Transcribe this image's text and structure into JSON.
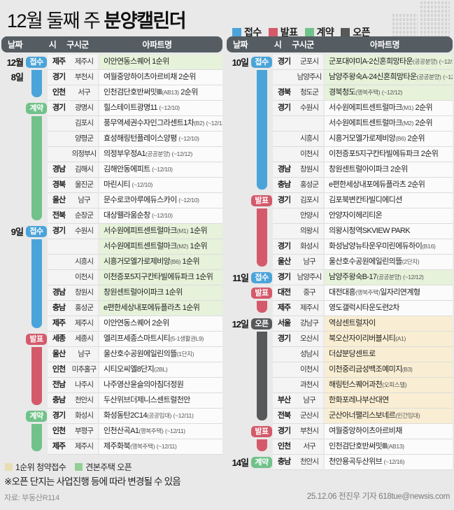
{
  "title": {
    "prefix": "12월 둘째 주 ",
    "emphasis": "분양캘린더"
  },
  "legend": {
    "items": [
      {
        "label": "접수",
        "color": "#4ba4d9"
      },
      {
        "label": "발표",
        "color": "#d45a6b"
      },
      {
        "label": "계약",
        "color": "#71c28a"
      },
      {
        "label": "오픈",
        "color": "#57585a"
      }
    ]
  },
  "columns": {
    "date": "날짜",
    "si": "시",
    "gugun": "구시군",
    "apt": "아파트명"
  },
  "colors": {
    "접수": "#4ba4d9",
    "발표": "#d45a6b",
    "계약": "#71c28a",
    "오픈": "#57585a",
    "hl_green": "#e6f2da",
    "hl_beige": "#f9eed3",
    "header": "#555d63"
  },
  "tables": [
    {
      "id": "left",
      "days": [
        {
          "date": [
            "12월",
            "8일"
          ],
          "sections": [
            {
              "type": "접수",
              "rows": [
                {
                  "si": "제주",
                  "gu": "제주시",
                  "apt": "이안연동스퀘어 1순위",
                  "hl": "green"
                },
                {
                  "si": "경기",
                  "gu": "부천시",
                  "apt": "여월중앙하이츠아르비채 2순위",
                  "hl": ""
                },
                {
                  "si": "인천",
                  "gu": "서구",
                  "apt": "인천검단호반써밋Ⅲ(AB13) 2순위",
                  "hl": ""
                }
              ]
            },
            {
              "type": "계약",
              "rows": [
                {
                  "si": "경기",
                  "gu": "광명시",
                  "apt": "힐스테이트광명11 (~12/10)",
                  "hl": ""
                },
                {
                  "si": "",
                  "gu": "김포시",
                  "apt": "풍무역세권수자인그라센트1차(B2) (~12/12)",
                  "hl": ""
                },
                {
                  "si": "",
                  "gu": "양평군",
                  "apt": "효성해링턴플레이스양평 (~12/10)",
                  "hl": ""
                },
                {
                  "si": "",
                  "gu": "의정부시",
                  "apt": "의정부우정A1(공공분양) (~12/12)",
                  "hl": ""
                },
                {
                  "si": "경남",
                  "gu": "김해시",
                  "apt": "김해안동에피트 (~12/10)",
                  "hl": ""
                },
                {
                  "si": "경북",
                  "gu": "울진군",
                  "apt": "마린시티 (~12/10)",
                  "hl": ""
                },
                {
                  "si": "울산",
                  "gu": "남구",
                  "apt": "문수로코아루에듀스카이 (~12/10)",
                  "hl": ""
                },
                {
                  "si": "전북",
                  "gu": "순창군",
                  "apt": "대상웰라움순창 (~12/10)",
                  "hl": ""
                }
              ]
            }
          ]
        },
        {
          "date": [
            "9일"
          ],
          "sections": [
            {
              "type": "접수",
              "rows": [
                {
                  "si": "경기",
                  "gu": "수원시",
                  "apt": "서수원에피트센트럴마크(M1) 1순위",
                  "hl": "green"
                },
                {
                  "si": "",
                  "gu": "",
                  "apt": "서수원에피트센트럴마크(M2) 1순위",
                  "hl": "green"
                },
                {
                  "si": "",
                  "gu": "시흥시",
                  "apt": "시흥거모엘가로제비앙(B6) 1순위",
                  "hl": "green"
                },
                {
                  "si": "",
                  "gu": "이천시",
                  "apt": "이천증포5지구칸타빌에듀파크 1순위",
                  "hl": "green"
                },
                {
                  "si": "경남",
                  "gu": "창원시",
                  "apt": "창원센트럴아이파크 1순위",
                  "hl": "green"
                },
                {
                  "si": "충남",
                  "gu": "홍성군",
                  "apt": "e편한세상내포에듀플라츠 1순위",
                  "hl": "green"
                },
                {
                  "si": "제주",
                  "gu": "제주시",
                  "apt": "이안연동스퀘어 2순위",
                  "hl": ""
                }
              ]
            },
            {
              "type": "발표",
              "rows": [
                {
                  "si": "세종",
                  "gu": "세종시",
                  "apt": "엘리프세종스마트시티(5-1생활권L9)",
                  "hl": ""
                },
                {
                  "si": "울산",
                  "gu": "남구",
                  "apt": "울산호수공원에일린의뜰(1단지)",
                  "hl": ""
                },
                {
                  "si": "인천",
                  "gu": "미추홀구",
                  "apt": "시티오씨엘8단지(2BL)",
                  "hl": ""
                },
                {
                  "si": "전남",
                  "gu": "나주시",
                  "apt": "나주영산윤슬의아침더정원",
                  "hl": ""
                },
                {
                  "si": "충남",
                  "gu": "천안시",
                  "apt": "두산위브더제니스센트럴천안",
                  "hl": ""
                }
              ]
            },
            {
              "type": "계약",
              "rows": [
                {
                  "si": "경기",
                  "gu": "화성시",
                  "apt": "화성동탄2C14(공공임대) (~12/11)",
                  "hl": ""
                },
                {
                  "si": "인천",
                  "gu": "부평구",
                  "apt": "인천산곡A1(행복주택) (~12/11)",
                  "hl": ""
                },
                {
                  "si": "제주",
                  "gu": "제주시",
                  "apt": "제주화북(행복주택) (~12/11)",
                  "hl": ""
                }
              ]
            }
          ]
        }
      ]
    },
    {
      "id": "right",
      "days": [
        {
          "date": [
            "10일"
          ],
          "sections": [
            {
              "type": "접수",
              "rows": [
                {
                  "si": "경기",
                  "gu": "군포시",
                  "apt": "군포대야미A-2신혼희망타운(공공분양) (~12/11)",
                  "hl": "green"
                },
                {
                  "si": "",
                  "gu": "남양주시",
                  "apt": "남양주왕숙A-24신혼희망타운(공공분양) (~12/12)",
                  "hl": "green"
                },
                {
                  "si": "경북",
                  "gu": "청도군",
                  "apt": "경북청도(행복주택) (~12/12)",
                  "hl": "green"
                },
                {
                  "si": "경기",
                  "gu": "수원시",
                  "apt": "서수원에피트센트럴마크(M1) 2순위",
                  "hl": ""
                },
                {
                  "si": "",
                  "gu": "",
                  "apt": "서수원에피트센트럴마크(M2) 2순위",
                  "hl": ""
                },
                {
                  "si": "",
                  "gu": "시흥시",
                  "apt": "시흥거모엘가로제비앙(B6) 2순위",
                  "hl": ""
                },
                {
                  "si": "",
                  "gu": "이천시",
                  "apt": "이천증포5지구칸타빌에듀파크 2순위",
                  "hl": ""
                },
                {
                  "si": "경남",
                  "gu": "창원시",
                  "apt": "창원센트럴아이파크 2순위",
                  "hl": ""
                },
                {
                  "si": "충남",
                  "gu": "홍성군",
                  "apt": "e편한세상내포에듀플라츠 2순위",
                  "hl": ""
                }
              ]
            },
            {
              "type": "발표",
              "rows": [
                {
                  "si": "경기",
                  "gu": "김포시",
                  "apt": "김포북변칸타빌디에디션",
                  "hl": ""
                },
                {
                  "si": "",
                  "gu": "안양시",
                  "apt": "안양자이헤리티온",
                  "hl": ""
                },
                {
                  "si": "",
                  "gu": "의왕시",
                  "apt": "의왕시청역SKVIEW PARK",
                  "hl": ""
                },
                {
                  "si": "경기",
                  "gu": "화성시",
                  "apt": "화성남양뉴타운우미린에듀하이(B16)",
                  "hl": ""
                },
                {
                  "si": "울산",
                  "gu": "남구",
                  "apt": "울산호수공원에일린의뜰(2단지)",
                  "hl": ""
                }
              ]
            }
          ]
        },
        {
          "date": [
            "11일"
          ],
          "sections": [
            {
              "type": "접수",
              "rows": [
                {
                  "si": "경기",
                  "gu": "남양주시",
                  "apt": "남양주왕숙B-17(공공분양) (~12/12)",
                  "hl": "green"
                }
              ]
            },
            {
              "type": "발표",
              "rows": [
                {
                  "si": "대전",
                  "gu": "중구",
                  "apt": "대전대흥(행복주택)일자리연계형",
                  "hl": ""
                },
                {
                  "si": "제주",
                  "gu": "제주시",
                  "apt": "영도갤럭시타운도련2차",
                  "hl": ""
                }
              ]
            }
          ]
        },
        {
          "date": [
            "12일"
          ],
          "sections": [
            {
              "type": "오픈",
              "rows": [
                {
                  "si": "서울",
                  "gu": "강남구",
                  "apt": "역삼센트럴자이",
                  "hl": "beige"
                },
                {
                  "si": "경기",
                  "gu": "오산시",
                  "apt": "북오산자이리버블시티(A1)",
                  "hl": "beige"
                },
                {
                  "si": "",
                  "gu": "성남시",
                  "apt": "더샵분당센트로",
                  "hl": "beige"
                },
                {
                  "si": "",
                  "gu": "이천시",
                  "apt": "이천중리금성백조예미지(B3)",
                  "hl": "beige"
                },
                {
                  "si": "",
                  "gu": "과천시",
                  "apt": "해링턴스퀘어과천(오피스텔)",
                  "hl": "beige"
                },
                {
                  "si": "부산",
                  "gu": "남구",
                  "apt": "한화포레나부산대연",
                  "hl": "beige"
                },
                {
                  "si": "전북",
                  "gu": "군산시",
                  "apt": "군산아너팰리스보네르(민간임대)",
                  "hl": "beige"
                }
              ]
            },
            {
              "type": "발표",
              "rows": [
                {
                  "si": "경기",
                  "gu": "부천시",
                  "apt": "여월중앙하이츠아르비채",
                  "hl": ""
                },
                {
                  "si": "인천",
                  "gu": "서구",
                  "apt": "인천검단호반써밋Ⅲ(AB13)",
                  "hl": ""
                }
              ]
            }
          ]
        },
        {
          "date": [
            "14일"
          ],
          "sections": [
            {
              "type": "계약",
              "rows": [
                {
                  "si": "충남",
                  "gu": "천안시",
                  "apt": "천안용곡두산위브 (~12/16)",
                  "hl": ""
                }
              ]
            }
          ]
        }
      ]
    }
  ],
  "footnotes": {
    "legend": [
      {
        "label": "1순위 청약접수",
        "color": "#e8ddb4"
      },
      {
        "label": "견본주택 오픈",
        "color": "#94cf94"
      }
    ],
    "note": "※오픈 단지는 사업진행 등에 따라 변경될 수 있음",
    "source": "자료: 부동산R114"
  },
  "credit": "25.12.06 전진우 기자 618tue@newsis.com"
}
